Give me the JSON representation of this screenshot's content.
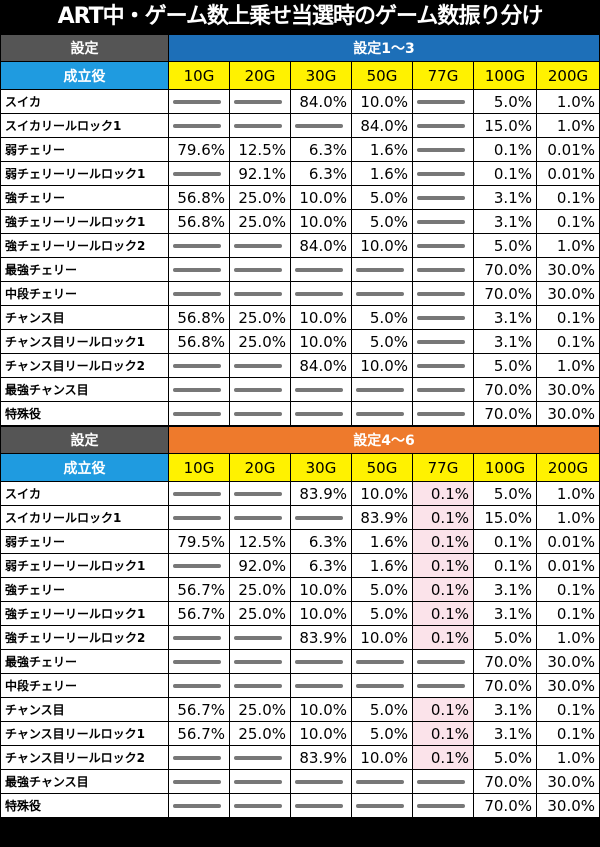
{
  "title": "ART中・ゲーム数上乗せ当選時のゲーム数振り分け",
  "columns": [
    "10G",
    "20G",
    "30G",
    "50G",
    "77G",
    "100G",
    "200G"
  ],
  "sections": [
    {
      "setting_label": "設定",
      "setting_value": "設定1～3",
      "header_color": "#1d6fb8",
      "yaku_label": "成立役",
      "rows": [
        {
          "name": "スイカ",
          "values": [
            "",
            "",
            "84.0%",
            "10.0%",
            "",
            "5.0%",
            "1.0%"
          ]
        },
        {
          "name": "スイカリールロック1",
          "values": [
            "",
            "",
            "",
            "84.0%",
            "",
            "15.0%",
            "1.0%"
          ]
        },
        {
          "name": "弱チェリー",
          "values": [
            "79.6%",
            "12.5%",
            "6.3%",
            "1.6%",
            "",
            "0.1%",
            "0.01%"
          ]
        },
        {
          "name": "弱チェリーリールロック1",
          "values": [
            "",
            "92.1%",
            "6.3%",
            "1.6%",
            "",
            "0.1%",
            "0.01%"
          ]
        },
        {
          "name": "強チェリー",
          "values": [
            "56.8%",
            "25.0%",
            "10.0%",
            "5.0%",
            "",
            "3.1%",
            "0.1%"
          ]
        },
        {
          "name": "強チェリーリールロック1",
          "values": [
            "56.8%",
            "25.0%",
            "10.0%",
            "5.0%",
            "",
            "3.1%",
            "0.1%"
          ]
        },
        {
          "name": "強チェリーリールロック2",
          "values": [
            "",
            "",
            "84.0%",
            "10.0%",
            "",
            "5.0%",
            "1.0%"
          ]
        },
        {
          "name": "最強チェリー",
          "values": [
            "",
            "",
            "",
            "",
            "",
            "70.0%",
            "30.0%"
          ]
        },
        {
          "name": "中段チェリー",
          "values": [
            "",
            "",
            "",
            "",
            "",
            "70.0%",
            "30.0%"
          ]
        },
        {
          "name": "チャンス目",
          "values": [
            "56.8%",
            "25.0%",
            "10.0%",
            "5.0%",
            "",
            "3.1%",
            "0.1%"
          ]
        },
        {
          "name": "チャンス目リールロック1",
          "values": [
            "56.8%",
            "25.0%",
            "10.0%",
            "5.0%",
            "",
            "3.1%",
            "0.1%"
          ]
        },
        {
          "name": "チャンス目リールロック2",
          "values": [
            "",
            "",
            "84.0%",
            "10.0%",
            "",
            "5.0%",
            "1.0%"
          ]
        },
        {
          "name": "最強チャンス目",
          "values": [
            "",
            "",
            "",
            "",
            "",
            "70.0%",
            "30.0%"
          ]
        },
        {
          "name": "特殊役",
          "values": [
            "",
            "",
            "",
            "",
            "",
            "70.0%",
            "30.0%"
          ]
        }
      ]
    },
    {
      "setting_label": "設定",
      "setting_value": "設定4～6",
      "header_color": "#ee7a2c",
      "yaku_label": "成立役",
      "rows": [
        {
          "name": "スイカ",
          "values": [
            "",
            "",
            "83.9%",
            "10.0%",
            "0.1%",
            "5.0%",
            "1.0%"
          ]
        },
        {
          "name": "スイカリールロック1",
          "values": [
            "",
            "",
            "",
            "83.9%",
            "0.1%",
            "15.0%",
            "1.0%"
          ]
        },
        {
          "name": "弱チェリー",
          "values": [
            "79.5%",
            "12.5%",
            "6.3%",
            "1.6%",
            "0.1%",
            "0.1%",
            "0.01%"
          ]
        },
        {
          "name": "弱チェリーリールロック1",
          "values": [
            "",
            "92.0%",
            "6.3%",
            "1.6%",
            "0.1%",
            "0.1%",
            "0.01%"
          ]
        },
        {
          "name": "強チェリー",
          "values": [
            "56.7%",
            "25.0%",
            "10.0%",
            "5.0%",
            "0.1%",
            "3.1%",
            "0.1%"
          ]
        },
        {
          "name": "強チェリーリールロック1",
          "values": [
            "56.7%",
            "25.0%",
            "10.0%",
            "5.0%",
            "0.1%",
            "3.1%",
            "0.1%"
          ]
        },
        {
          "name": "強チェリーリールロック2",
          "values": [
            "",
            "",
            "83.9%",
            "10.0%",
            "0.1%",
            "5.0%",
            "1.0%"
          ]
        },
        {
          "name": "最強チェリー",
          "values": [
            "",
            "",
            "",
            "",
            "",
            "70.0%",
            "30.0%"
          ]
        },
        {
          "name": "中段チェリー",
          "values": [
            "",
            "",
            "",
            "",
            "",
            "70.0%",
            "30.0%"
          ]
        },
        {
          "name": "チャンス目",
          "values": [
            "56.7%",
            "25.0%",
            "10.0%",
            "5.0%",
            "0.1%",
            "3.1%",
            "0.1%"
          ]
        },
        {
          "name": "チャンス目リールロック1",
          "values": [
            "56.7%",
            "25.0%",
            "10.0%",
            "5.0%",
            "0.1%",
            "3.1%",
            "0.1%"
          ]
        },
        {
          "name": "チャンス目リールロック2",
          "values": [
            "",
            "",
            "83.9%",
            "10.0%",
            "0.1%",
            "5.0%",
            "1.0%"
          ]
        },
        {
          "name": "最強チャンス目",
          "values": [
            "",
            "",
            "",
            "",
            "",
            "70.0%",
            "30.0%"
          ]
        },
        {
          "name": "特殊役",
          "values": [
            "",
            "",
            "",
            "",
            "",
            "70.0%",
            "30.0%"
          ]
        }
      ]
    }
  ]
}
